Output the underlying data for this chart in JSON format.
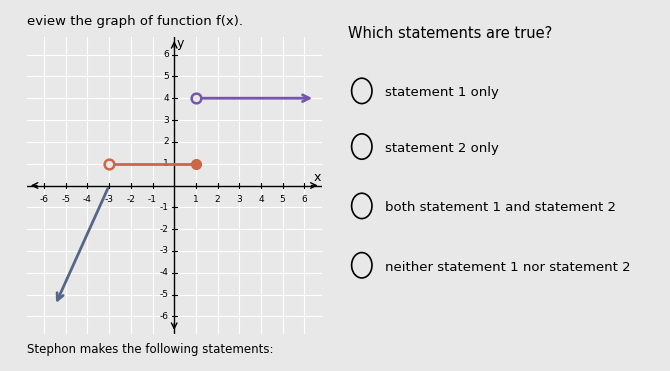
{
  "title_left": "eview the graph of function f(x).",
  "title_right": "Which statements are true?",
  "choices": [
    "statement 1 only",
    "statement 2 only",
    "both statement 1 and statement 2",
    "neither statement 1 nor statement 2"
  ],
  "footer": "Stephon makes the following statements:",
  "xlim": [
    -6.8,
    6.8
  ],
  "ylim": [
    -6.8,
    6.8
  ],
  "xticks": [
    -6,
    -5,
    -4,
    -3,
    -2,
    -1,
    1,
    2,
    3,
    4,
    5,
    6
  ],
  "yticks": [
    -6,
    -5,
    -4,
    -3,
    -2,
    -1,
    1,
    2,
    3,
    4,
    5,
    6
  ],
  "segment_orange": {
    "x_start": -3,
    "y_start": 1,
    "x_end": 1,
    "y_end": 1,
    "color": "#cc6644"
  },
  "ray_purple": {
    "x_start": 1,
    "y_start": 4,
    "x_end": 6.5,
    "y_end": 4,
    "color": "#7755aa"
  },
  "ray_blue": {
    "x_start": -3,
    "y_start": 0,
    "x_end": -5.5,
    "y_end": -5.5,
    "color": "#556688"
  },
  "background_color": "#e8e8e8",
  "graph_bg": "#e8e8e8",
  "grid_color": "#ffffff"
}
